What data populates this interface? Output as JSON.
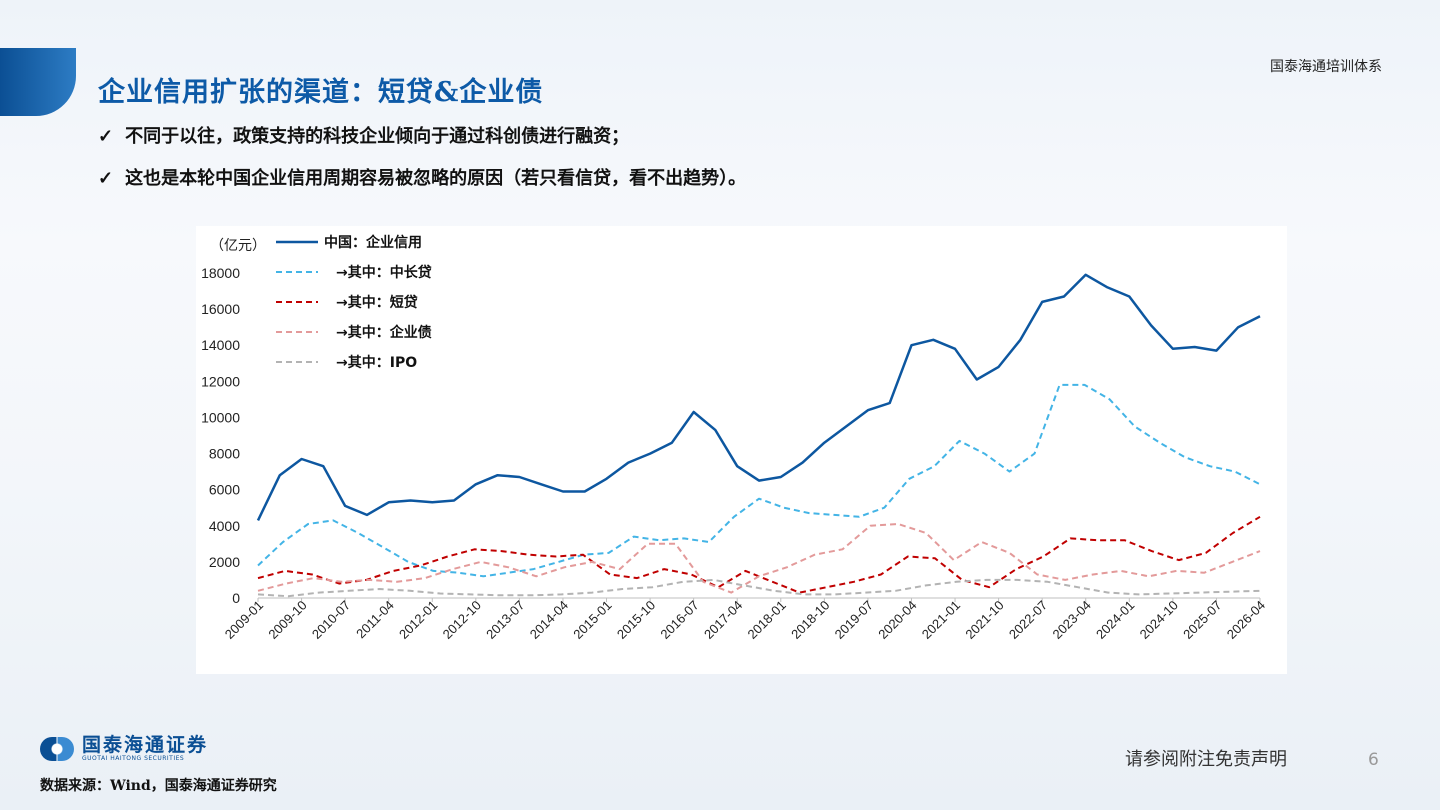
{
  "header": {
    "brand": "国泰海通培训体系",
    "title": "企业信用扩张的渠道：短贷&企业债"
  },
  "bullets": [
    {
      "icon": "check-icon",
      "text": "不同于以往，政策支持的科技企业倾向于通过科创债进行融资；"
    },
    {
      "icon": "check-icon",
      "text": "这也是本轮中国企业信用周期容易被忽略的原因（若只看信贷，看不出趋势）。"
    }
  ],
  "chart_data": {
    "type": "line",
    "unit_label": "（亿元）",
    "ylim": [
      0,
      18000
    ],
    "yticks": [
      0,
      2000,
      4000,
      6000,
      8000,
      10000,
      12000,
      14000,
      16000,
      18000
    ],
    "x_tick_labels": [
      "2009-01",
      "2009-10",
      "2010-07",
      "2011-04",
      "2012-01",
      "2012-10",
      "2013-07",
      "2014-04",
      "2015-01",
      "2015-10",
      "2016-07",
      "2017-04",
      "2018-01",
      "2018-10",
      "2019-07",
      "2020-04",
      "2021-01",
      "2021-10",
      "2022-07",
      "2023-04",
      "2024-01",
      "2024-10",
      "2025-07",
      "2026-04"
    ],
    "grid": false,
    "legend_position": "top-left",
    "series": [
      {
        "name": "中国：企业信用",
        "color": "#0d57a0",
        "dash": "solid",
        "values": [
          4300,
          6800,
          7700,
          7300,
          5100,
          4600,
          5300,
          5400,
          5300,
          5400,
          6300,
          6800,
          6700,
          6300,
          5900,
          5900,
          6600,
          7500,
          8000,
          8600,
          10300,
          9300,
          7300,
          6500,
          6700,
          7500,
          8600,
          9500,
          10400,
          10800,
          14000,
          14300,
          13800,
          12100,
          12800,
          14300,
          16400,
          16700,
          17900,
          17200,
          16700,
          15100,
          13800,
          13900,
          13700,
          15000,
          15600
        ]
      },
      {
        "name": "→其中：中长贷",
        "color": "#43b4e6",
        "dash": "dashed",
        "values": [
          1800,
          3100,
          4100,
          4300,
          3600,
          2800,
          2000,
          1500,
          1400,
          1200,
          1400,
          1600,
          2000,
          2400,
          2500,
          3400,
          3200,
          3300,
          3100,
          4500,
          5500,
          5000,
          4700,
          4600,
          4500,
          5000,
          6600,
          7300,
          8700,
          8000,
          7000,
          8000,
          11800,
          11800,
          11000,
          9500,
          8600,
          7800,
          7300,
          7000,
          6300
        ]
      },
      {
        "name": "→其中：短贷",
        "color": "#c00000",
        "dash": "dashed",
        "values": [
          1100,
          1500,
          1300,
          800,
          1000,
          1500,
          1800,
          2300,
          2700,
          2600,
          2400,
          2300,
          2400,
          1300,
          1100,
          1600,
          1300,
          600,
          1500,
          900,
          300,
          600,
          900,
          1300,
          2300,
          2200,
          1000,
          600,
          1600,
          2300,
          3300,
          3200,
          3200,
          2600,
          2100,
          2500,
          3600,
          4500
        ]
      },
      {
        "name": "→其中：企业债",
        "color": "#e39a9a",
        "dash": "dashed",
        "values": [
          400,
          800,
          1100,
          900,
          1000,
          900,
          1100,
          1600,
          2000,
          1700,
          1200,
          1700,
          2000,
          1600,
          3000,
          3000,
          900,
          300,
          1200,
          1700,
          2400,
          2700,
          4000,
          4100,
          3600,
          2100,
          3100,
          2500,
          1300,
          1000,
          1300,
          1500,
          1200,
          1500,
          1400,
          2000,
          2600
        ]
      },
      {
        "name": "→其中：IPO",
        "color": "#b3b3b3",
        "dash": "dashed",
        "values": [
          200,
          100,
          300,
          400,
          500,
          400,
          250,
          200,
          150,
          150,
          200,
          300,
          500,
          600,
          900,
          1000,
          700,
          400,
          200,
          200,
          300,
          400,
          700,
          900,
          1000,
          1000,
          900,
          600,
          300,
          200,
          250,
          300,
          350,
          400
        ]
      }
    ]
  },
  "footer": {
    "logo_cn": "国泰海通证券",
    "logo_en": "GUOTAI HAITONG SECURITIES",
    "source": "数据来源：Wind，国泰海通证券研究",
    "disclaimer": "请参阅附注免责声明",
    "page_number": "6"
  }
}
